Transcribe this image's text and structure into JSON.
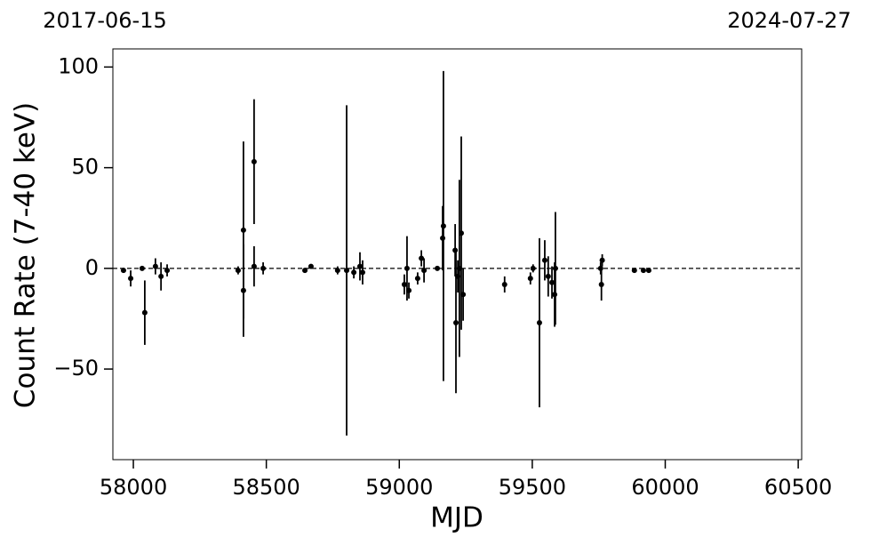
{
  "chart_data": {
    "type": "scatter",
    "xlabel": "MJD",
    "ylabel": "Count Rate (7-40 keV)",
    "annotations": [
      "2017-06-15",
      "2024-07-27"
    ],
    "color": "#000000",
    "hline": 0,
    "xlim": [
      57923,
      60513
    ],
    "ylim": [
      -95,
      109
    ],
    "xticks": [
      58000,
      58500,
      59000,
      59500,
      60000,
      60500
    ],
    "yticks": [
      {
        "value": -50,
        "label": "−50"
      },
      0,
      50,
      100
    ],
    "x": [
      57963,
      57990,
      58033,
      58043,
      58083,
      58104,
      58127,
      58394,
      58414,
      58414,
      58454,
      58454,
      58488,
      58645,
      58668,
      58768,
      58802,
      58829,
      58852,
      58862,
      59019,
      59029,
      59036,
      59069,
      59083,
      59093,
      59143,
      59163,
      59166,
      59210,
      59213,
      59220,
      59226,
      59233,
      59240,
      59396,
      59493,
      59503,
      59527,
      59547,
      59560,
      59574,
      59584,
      59587,
      59757,
      59760,
      59763,
      59884,
      59918,
      59938
    ],
    "values": [
      -1,
      -5,
      0,
      -22,
      1,
      -4,
      -1,
      -1,
      19,
      -11,
      53,
      1,
      0,
      -1,
      1,
      -1,
      -1,
      -2,
      1,
      -2,
      -8,
      0,
      -11,
      -5,
      5,
      -1,
      0,
      15,
      21,
      9,
      -27,
      -4,
      0,
      17.5,
      -13,
      -8,
      -5,
      0,
      -27,
      4,
      -4,
      -7,
      -13,
      0,
      0,
      -8,
      4,
      -1,
      -1,
      -1
    ],
    "errors": [
      1,
      4,
      1,
      16,
      4,
      7,
      3,
      2,
      44,
      23,
      31,
      10,
      3,
      1,
      1,
      2,
      82,
      3,
      7,
      6,
      5,
      16,
      4,
      3,
      4,
      6,
      1,
      16,
      77,
      13,
      35,
      8,
      44,
      48,
      13,
      4,
      3,
      2,
      42,
      10,
      10,
      8,
      16,
      28,
      3,
      8,
      3,
      1,
      1,
      1
    ]
  }
}
